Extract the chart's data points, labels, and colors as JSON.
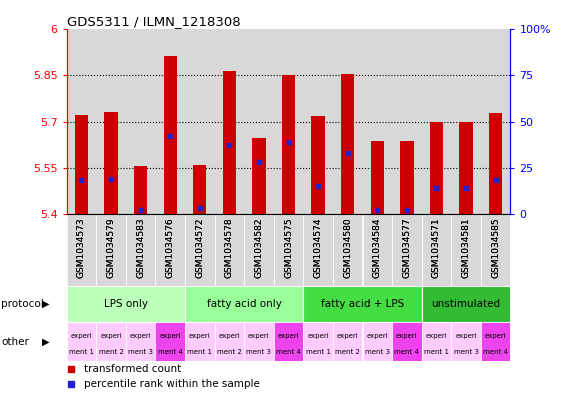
{
  "title": "GDS5311 / ILMN_1218308",
  "samples": [
    "GSM1034573",
    "GSM1034579",
    "GSM1034583",
    "GSM1034576",
    "GSM1034572",
    "GSM1034578",
    "GSM1034582",
    "GSM1034575",
    "GSM1034574",
    "GSM1034580",
    "GSM1034584",
    "GSM1034577",
    "GSM1034571",
    "GSM1034581",
    "GSM1034585"
  ],
  "transformed_count": [
    5.72,
    5.73,
    5.555,
    5.915,
    5.558,
    5.865,
    5.645,
    5.852,
    5.718,
    5.855,
    5.635,
    5.635,
    5.7,
    5.7,
    5.728
  ],
  "percentile_rank": [
    18,
    19,
    2,
    42,
    3,
    37,
    28,
    39,
    15,
    33,
    2,
    2,
    14,
    14,
    18
  ],
  "ymin": 5.4,
  "ymax": 6.0,
  "yticks": [
    5.4,
    5.55,
    5.7,
    5.85,
    6.0
  ],
  "ytick_labels": [
    "5.4",
    "5.55",
    "5.7",
    "5.85",
    "6"
  ],
  "y2ticks_pct": [
    0,
    25,
    50,
    75,
    100
  ],
  "y2tick_labels": [
    "0",
    "25",
    "50",
    "75",
    "100%"
  ],
  "groups": [
    {
      "label": "LPS only",
      "start": 0,
      "end": 4,
      "color": "#bbffbb"
    },
    {
      "label": "fatty acid only",
      "start": 4,
      "end": 8,
      "color": "#99ff99"
    },
    {
      "label": "fatty acid + LPS",
      "start": 8,
      "end": 12,
      "color": "#44dd44"
    },
    {
      "label": "unstimulated",
      "start": 12,
      "end": 15,
      "color": "#33bb33"
    }
  ],
  "other_colors_light": "#ffccff",
  "other_colors_dark": "#ee44ee",
  "other_dark_indices": [
    3,
    7,
    11,
    14
  ],
  "other_labels_top": [
    "experi",
    "experi",
    "experi",
    "experi",
    "experi",
    "experi",
    "experi",
    "experi",
    "experi",
    "experi",
    "experi",
    "experi",
    "experi",
    "experi",
    "experi"
  ],
  "other_labels_bot": [
    "ment 1",
    "ment 2",
    "ment 3",
    "ment 4",
    "ment 1",
    "ment 2",
    "ment 3",
    "ment 4",
    "ment 1",
    "ment 2",
    "ment 3",
    "ment 4",
    "ment 1",
    "ment 3",
    "ment 4"
  ],
  "bar_color": "#cc0000",
  "marker_color": "#2222cc",
  "col_bg": "#d8d8d8",
  "plot_bg": "#ffffff",
  "legend_red": "transformed count",
  "legend_blue": "percentile rank within the sample",
  "left_protocol": "protocol",
  "left_other": "other"
}
